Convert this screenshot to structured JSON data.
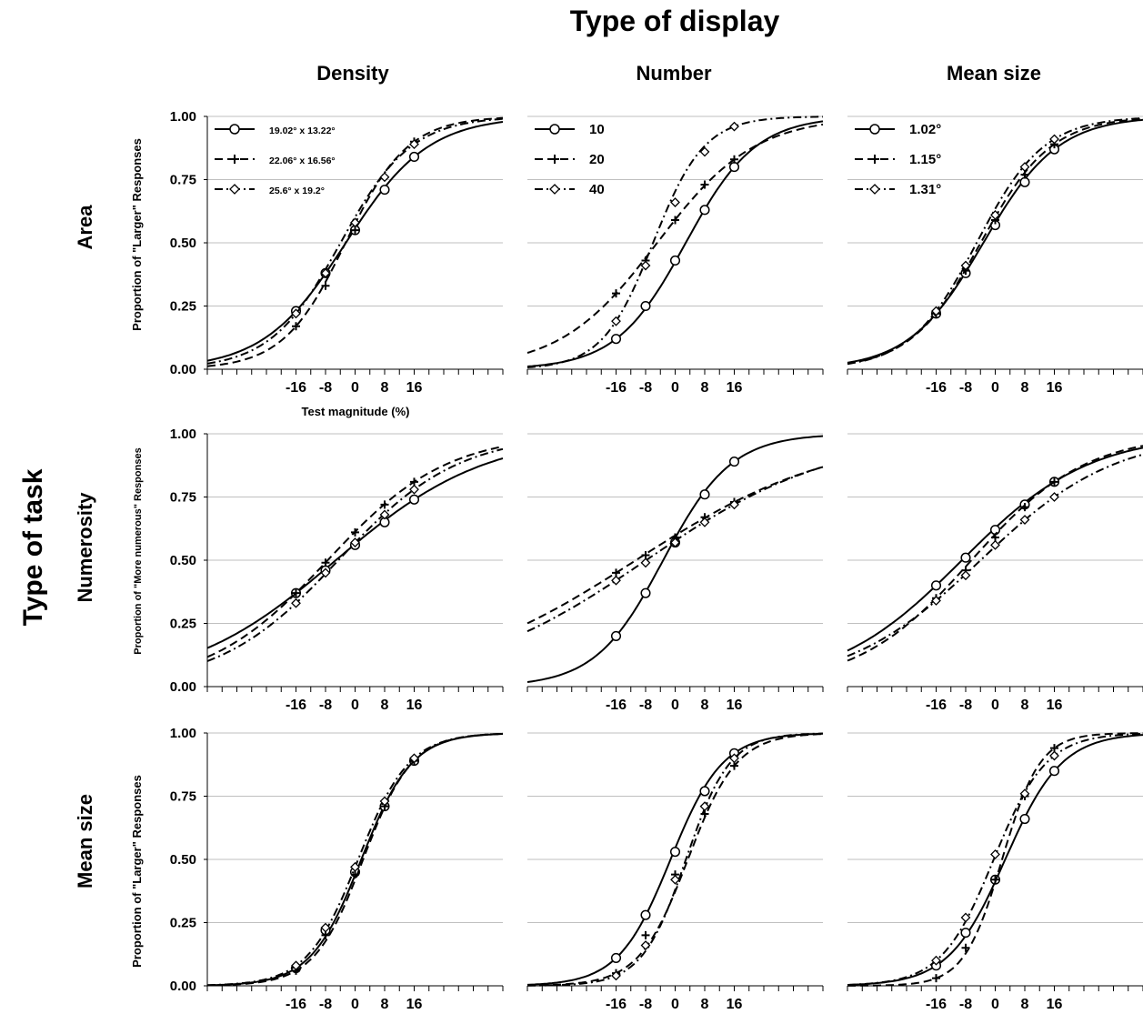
{
  "figure": {
    "title": "Type of display",
    "row_group_label": "Type of task",
    "columns": [
      "Density",
      "Number",
      "Mean size"
    ],
    "rows": [
      "Area",
      "Numerosity",
      "Mean size"
    ],
    "ylabels": [
      "Proportion of \"Larger\" Responses",
      "Proportion of \"More numerous\" Responses",
      "Proportion of \"Larger\" Responses"
    ],
    "xlabel": "Test magnitude (%)",
    "ytick_labels": [
      "0.00",
      "0.25",
      "0.50",
      "0.75",
      "1.00"
    ],
    "xtick_labels": [
      "-16",
      "-8",
      "0",
      "8",
      "16"
    ],
    "legends": [
      [
        "19.02° x 13.22°",
        "22.06° x 16.56°",
        "25.6° x 19.2°"
      ],
      [
        "10",
        "20",
        "40"
      ],
      [
        "1.02°",
        "1.15°",
        "1.31°"
      ]
    ],
    "line_styles": [
      "solid",
      "dashed",
      "dash-dot"
    ],
    "marker_names": [
      "circle",
      "plus",
      "diamond"
    ],
    "colors": {
      "line": "#000000",
      "grid": "#bfbfbf",
      "axis": "#000000"
    }
  },
  "chart_data": [
    {
      "type": "line",
      "row": "Area",
      "column": "Density",
      "xlabel": "Test magnitude (%)",
      "ylabel": "Proportion of \"Larger\" Responses",
      "ylim": [
        0,
        1
      ],
      "xticks": [
        -16,
        -8,
        0,
        8,
        16
      ],
      "grid": "horizontal",
      "legend": "top-left",
      "series": [
        {
          "name": "19.02° x 13.22°",
          "marker": "circle",
          "line": "solid",
          "x": [
            -16,
            -8,
            0,
            8,
            16
          ],
          "y": [
            0.23,
            0.38,
            0.55,
            0.71,
            0.84
          ]
        },
        {
          "name": "22.06° x 16.56°",
          "marker": "plus",
          "line": "dashed",
          "x": [
            -16,
            -8,
            0,
            8,
            16
          ],
          "y": [
            0.17,
            0.33,
            0.55,
            0.76,
            0.9
          ]
        },
        {
          "name": "25.6° x 19.2°",
          "marker": "diamond",
          "line": "dash-dot",
          "x": [
            -16,
            -8,
            0,
            8,
            16
          ],
          "y": [
            0.22,
            0.38,
            0.58,
            0.76,
            0.89
          ]
        }
      ]
    },
    {
      "type": "line",
      "row": "Area",
      "column": "Number",
      "ylim": [
        0,
        1
      ],
      "xticks": [
        -16,
        -8,
        0,
        8,
        16
      ],
      "grid": "horizontal",
      "legend": "top-left",
      "series": [
        {
          "name": "10",
          "marker": "circle",
          "line": "solid",
          "x": [
            -16,
            -8,
            0,
            8,
            16
          ],
          "y": [
            0.12,
            0.25,
            0.43,
            0.63,
            0.8
          ]
        },
        {
          "name": "20",
          "marker": "plus",
          "line": "dashed",
          "x": [
            -16,
            -8,
            0,
            8,
            16
          ],
          "y": [
            0.3,
            0.43,
            0.59,
            0.73,
            0.83
          ]
        },
        {
          "name": "40",
          "marker": "diamond",
          "line": "dash-dot",
          "x": [
            -16,
            -8,
            0,
            8,
            16
          ],
          "y": [
            0.19,
            0.41,
            0.66,
            0.86,
            0.96
          ]
        }
      ]
    },
    {
      "type": "line",
      "row": "Area",
      "column": "Mean size",
      "ylim": [
        0,
        1
      ],
      "xticks": [
        -16,
        -8,
        0,
        8,
        16
      ],
      "grid": "horizontal",
      "legend": "top-left",
      "series": [
        {
          "name": "1.02°",
          "marker": "circle",
          "line": "solid",
          "x": [
            -16,
            -8,
            0,
            8,
            16
          ],
          "y": [
            0.22,
            0.38,
            0.57,
            0.74,
            0.87
          ]
        },
        {
          "name": "1.15°",
          "marker": "plus",
          "line": "dashed",
          "x": [
            -16,
            -8,
            0,
            8,
            16
          ],
          "y": [
            0.22,
            0.39,
            0.59,
            0.77,
            0.89
          ]
        },
        {
          "name": "1.31°",
          "marker": "diamond",
          "line": "dash-dot",
          "x": [
            -16,
            -8,
            0,
            8,
            16
          ],
          "y": [
            0.23,
            0.41,
            0.61,
            0.8,
            0.91
          ]
        }
      ]
    },
    {
      "type": "line",
      "row": "Numerosity",
      "column": "Density",
      "ylabel": "Proportion of \"More numerous\" Responses",
      "ylim": [
        0,
        1
      ],
      "xticks": [
        -16,
        -8,
        0,
        8,
        16
      ],
      "grid": "horizontal",
      "series": [
        {
          "name": "19.02° x 13.22°",
          "marker": "circle",
          "line": "solid",
          "x": [
            -16,
            -8,
            0,
            8,
            16
          ],
          "y": [
            0.37,
            0.46,
            0.56,
            0.65,
            0.74
          ]
        },
        {
          "name": "22.06° x 16.56°",
          "marker": "plus",
          "line": "dashed",
          "x": [
            -16,
            -8,
            0,
            8,
            16
          ],
          "y": [
            0.37,
            0.49,
            0.61,
            0.72,
            0.81
          ]
        },
        {
          "name": "25.6° x 19.2°",
          "marker": "diamond",
          "line": "dash-dot",
          "x": [
            -16,
            -8,
            0,
            8,
            16
          ],
          "y": [
            0.33,
            0.45,
            0.57,
            0.68,
            0.78
          ]
        }
      ]
    },
    {
      "type": "line",
      "row": "Numerosity",
      "column": "Number",
      "ylim": [
        0,
        1
      ],
      "xticks": [
        -16,
        -8,
        0,
        8,
        16
      ],
      "grid": "horizontal",
      "series": [
        {
          "name": "10",
          "marker": "circle",
          "line": "solid",
          "x": [
            -16,
            -8,
            0,
            8,
            16
          ],
          "y": [
            0.2,
            0.37,
            0.57,
            0.76,
            0.89
          ]
        },
        {
          "name": "20",
          "marker": "plus",
          "line": "dashed",
          "x": [
            -16,
            -8,
            0,
            8,
            16
          ],
          "y": [
            0.45,
            0.52,
            0.59,
            0.67,
            0.73
          ]
        },
        {
          "name": "40",
          "marker": "diamond",
          "line": "dash-dot",
          "x": [
            -16,
            -8,
            0,
            8,
            16
          ],
          "y": [
            0.42,
            0.49,
            0.57,
            0.65,
            0.72
          ]
        }
      ]
    },
    {
      "type": "line",
      "row": "Numerosity",
      "column": "Mean size",
      "ylim": [
        0,
        1
      ],
      "xticks": [
        -16,
        -8,
        0,
        8,
        16
      ],
      "grid": "horizontal",
      "series": [
        {
          "name": "1.02°",
          "marker": "circle",
          "line": "solid",
          "x": [
            -16,
            -8,
            0,
            8,
            16
          ],
          "y": [
            0.4,
            0.51,
            0.62,
            0.72,
            0.81
          ]
        },
        {
          "name": "1.15°",
          "marker": "plus",
          "line": "dashed",
          "x": [
            -16,
            -8,
            0,
            8,
            16
          ],
          "y": [
            0.35,
            0.46,
            0.59,
            0.71,
            0.81
          ]
        },
        {
          "name": "1.31°",
          "marker": "diamond",
          "line": "dash-dot",
          "x": [
            -16,
            -8,
            0,
            8,
            16
          ],
          "y": [
            0.34,
            0.44,
            0.56,
            0.66,
            0.75
          ]
        }
      ]
    },
    {
      "type": "line",
      "row": "Mean size",
      "column": "Density",
      "ylabel": "Proportion of \"Larger\" Responses",
      "ylim": [
        0,
        1
      ],
      "xticks": [
        -16,
        -8,
        0,
        8,
        16
      ],
      "grid": "horizontal",
      "series": [
        {
          "name": "19.02° x 13.22°",
          "marker": "circle",
          "line": "solid",
          "x": [
            -16,
            -8,
            0,
            8,
            16
          ],
          "y": [
            0.07,
            0.22,
            0.45,
            0.71,
            0.89
          ]
        },
        {
          "name": "22.06° x 16.56°",
          "marker": "plus",
          "line": "dashed",
          "x": [
            -16,
            -8,
            0,
            8,
            16
          ],
          "y": [
            0.06,
            0.2,
            0.44,
            0.71,
            0.89
          ]
        },
        {
          "name": "25.6° x 19.2°",
          "marker": "diamond",
          "line": "dash-dot",
          "x": [
            -16,
            -8,
            0,
            8,
            16
          ],
          "y": [
            0.08,
            0.23,
            0.47,
            0.73,
            0.9
          ]
        }
      ]
    },
    {
      "type": "line",
      "row": "Mean size",
      "column": "Number",
      "ylim": [
        0,
        1
      ],
      "xticks": [
        -16,
        -8,
        0,
        8,
        16
      ],
      "grid": "horizontal",
      "series": [
        {
          "name": "10",
          "marker": "circle",
          "line": "solid",
          "x": [
            -16,
            -8,
            0,
            8,
            16
          ],
          "y": [
            0.11,
            0.28,
            0.53,
            0.77,
            0.92
          ]
        },
        {
          "name": "20",
          "marker": "plus",
          "line": "dashed",
          "x": [
            -16,
            -8,
            0,
            8,
            16
          ],
          "y": [
            0.05,
            0.2,
            0.44,
            0.68,
            0.87
          ]
        },
        {
          "name": "40",
          "marker": "diamond",
          "line": "dash-dot",
          "x": [
            -16,
            -8,
            0,
            8,
            16
          ],
          "y": [
            0.04,
            0.16,
            0.42,
            0.71,
            0.9
          ]
        }
      ]
    },
    {
      "type": "line",
      "row": "Mean size",
      "column": "Mean size",
      "ylim": [
        0,
        1
      ],
      "xticks": [
        -16,
        -8,
        0,
        8,
        16
      ],
      "grid": "horizontal",
      "series": [
        {
          "name": "1.02°",
          "marker": "circle",
          "line": "solid",
          "x": [
            -16,
            -8,
            0,
            8,
            16
          ],
          "y": [
            0.08,
            0.21,
            0.42,
            0.66,
            0.85
          ]
        },
        {
          "name": "1.15°",
          "marker": "plus",
          "line": "dashed",
          "x": [
            -16,
            -8,
            0,
            8,
            16
          ],
          "y": [
            0.03,
            0.15,
            0.42,
            0.75,
            0.94
          ]
        },
        {
          "name": "1.31°",
          "marker": "diamond",
          "line": "dash-dot",
          "x": [
            -16,
            -8,
            0,
            8,
            16
          ],
          "y": [
            0.1,
            0.27,
            0.52,
            0.76,
            0.91
          ]
        }
      ]
    }
  ]
}
